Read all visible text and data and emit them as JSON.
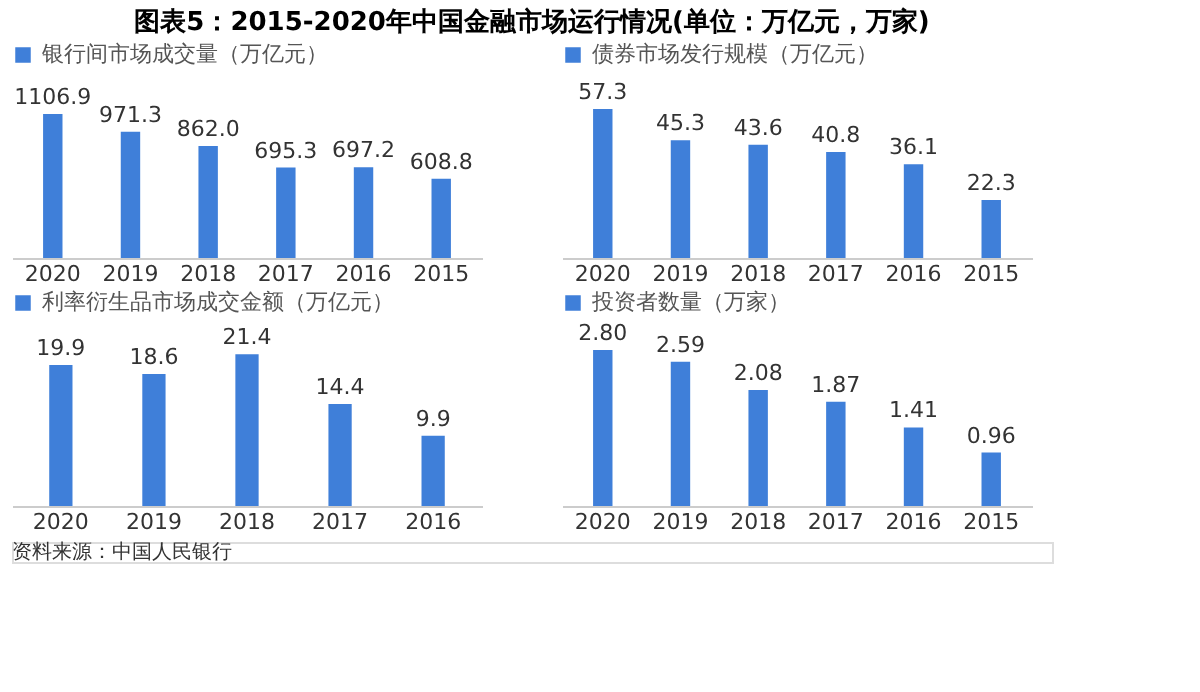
{
  "chart_data": [
    {
      "type": "bar",
      "title": "图表5：2015-2020年中国金融市场运行情况(单位：万亿元，万家)",
      "categories": [
        "2020",
        "2019",
        "2018",
        "2017",
        "2016",
        "2015"
      ],
      "series": [
        {
          "name": "银行间市场成交量（万亿元）",
          "color": "#3f7fd9",
          "values": [
            1106.9,
            971.3,
            862.0,
            695.3,
            697.2,
            608.8
          ],
          "value_labels": [
            "1106.9",
            "971.3",
            "862.0",
            "695.3",
            "697.2",
            "608.8"
          ]
        }
      ],
      "legend": "top"
    },
    {
      "type": "bar",
      "categories": [
        "2020",
        "2019",
        "2018",
        "2017",
        "2016",
        "2015"
      ],
      "series": [
        {
          "name": "债券市场发行规模（万亿元）",
          "color": "#3f7fd9",
          "values": [
            57.3,
            45.3,
            43.6,
            40.8,
            36.1,
            22.3
          ]
        }
      ],
      "data_labels": true,
      "legend": "top"
    },
    {
      "type": "bar",
      "categories": [
        "2020",
        "2019",
        "2018",
        "2017",
        "2016"
      ],
      "series": [
        {
          "name": "利率衍生品市场成交金额（万亿元）",
          "color": "#3f7fd9",
          "values": [
            19.9,
            18.6,
            21.4,
            14.4,
            9.9
          ]
        }
      ],
      "data_labels": true,
      "legend": "top",
      "annotations": [
        "资料来源：中国人民银行"
      ]
    },
    {
      "type": "bar",
      "categories": [
        "2020",
        "2019",
        "2018",
        "2017",
        "2016",
        "2015"
      ],
      "series": [
        {
          "name": "投资者数量（万家）",
          "color": "#3f7fd9",
          "values": [
            2.8,
            2.59,
            2.08,
            1.87,
            1.41,
            0.96
          ],
          "value_labels": [
            "2.80",
            "2.59",
            "2.08",
            "1.87",
            "1.41",
            "0.96"
          ]
        }
      ],
      "legend": "top"
    }
  ]
}
